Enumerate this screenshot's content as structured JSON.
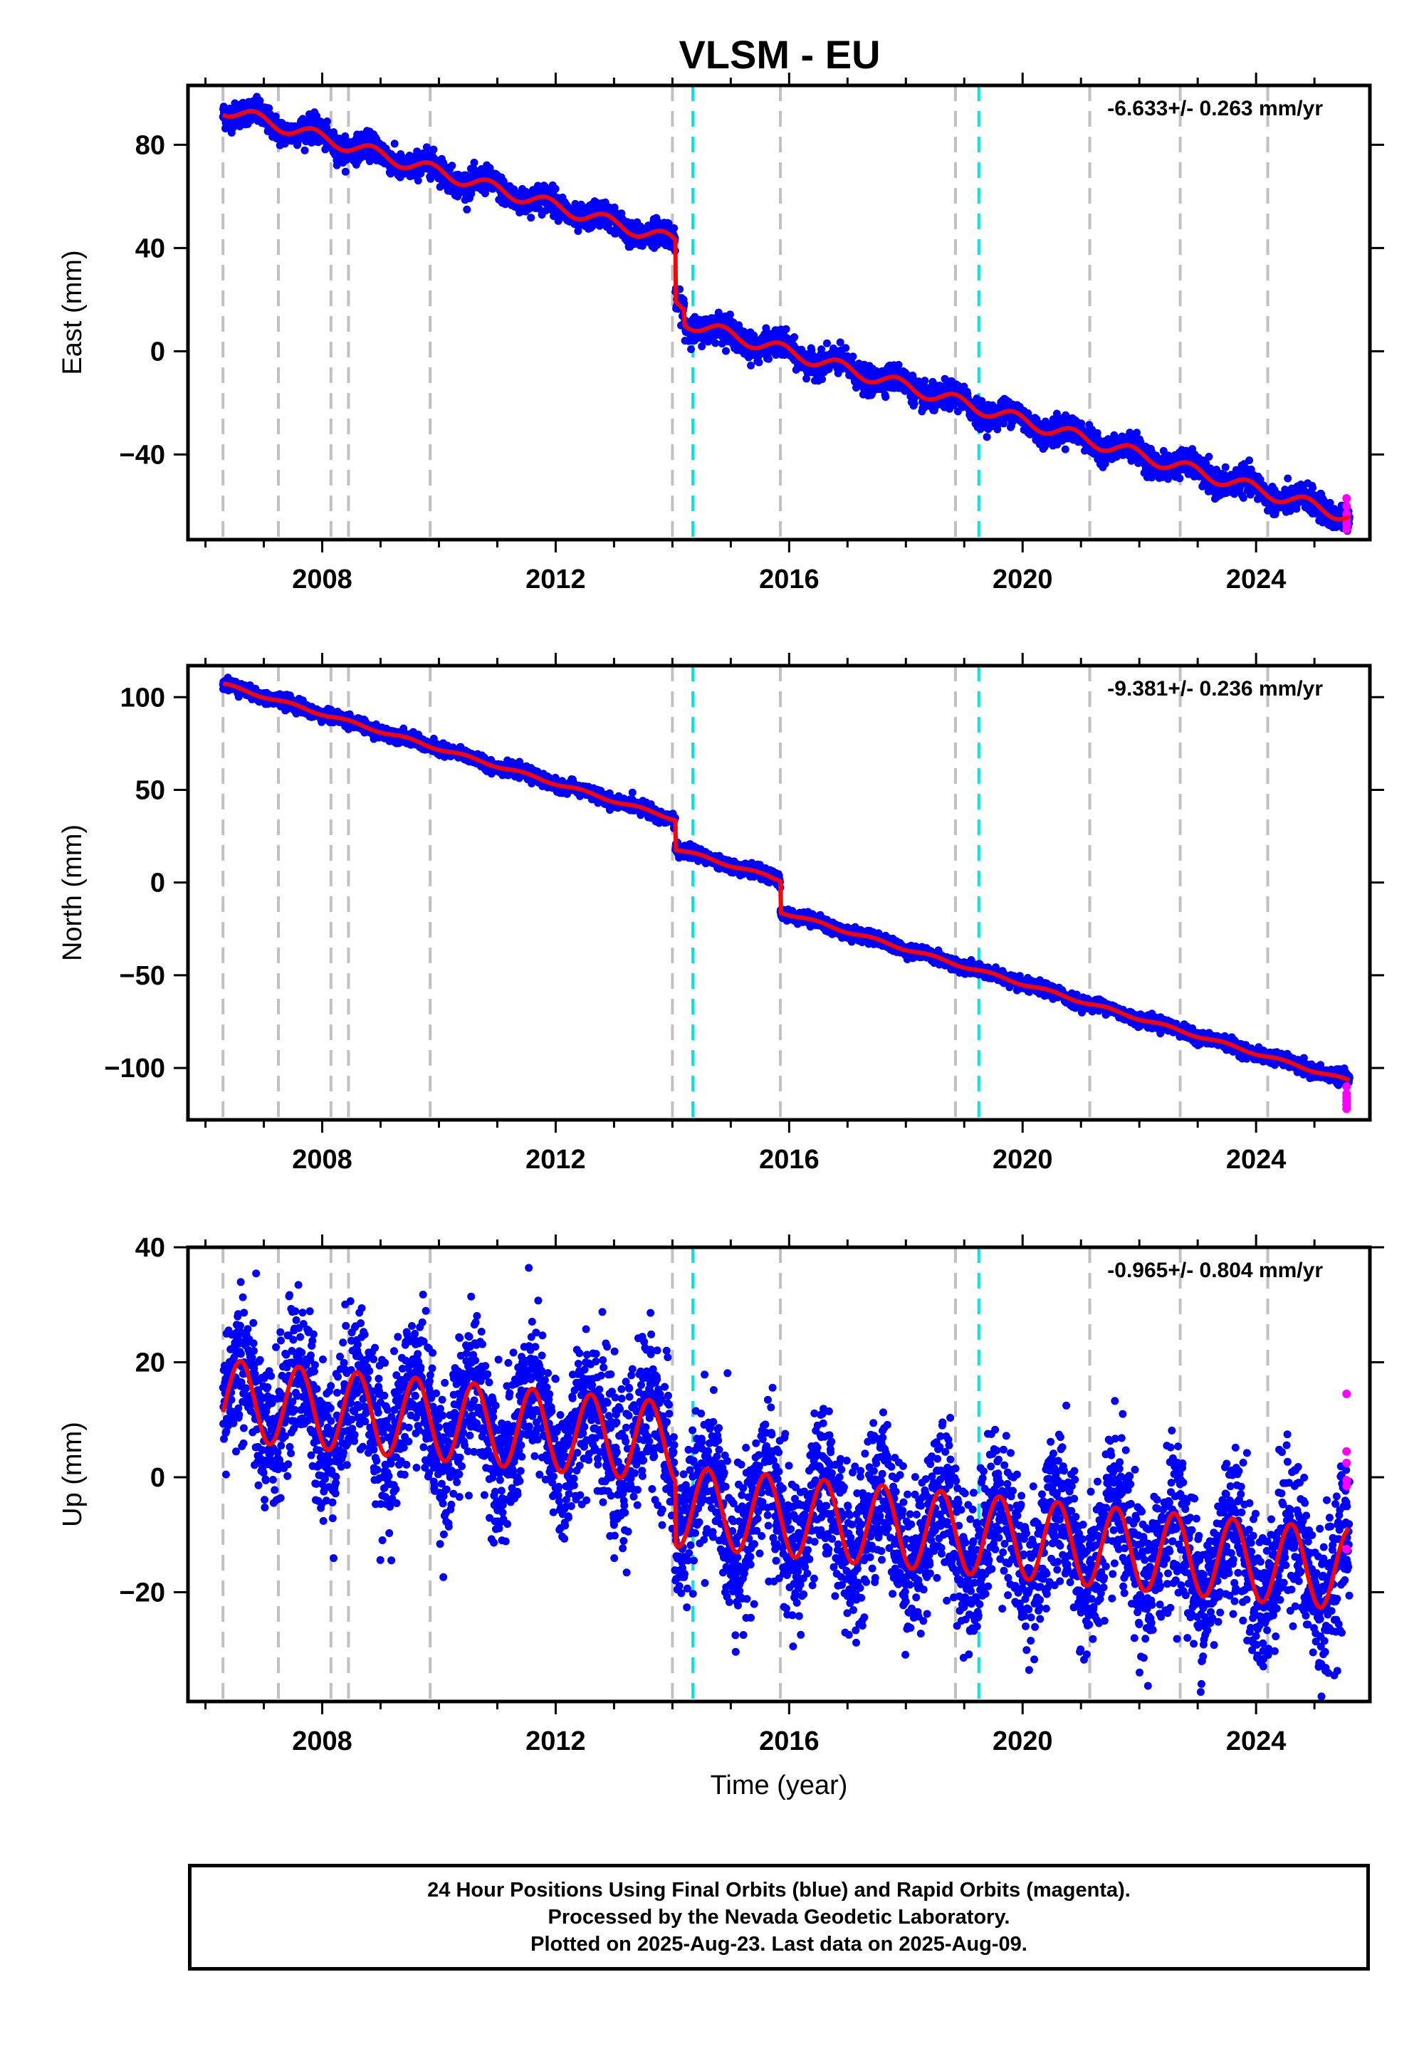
{
  "title": "VLSM - EU",
  "colors": {
    "final_points": "#0000ff",
    "rapid_points": "#ff00ff",
    "model_fit": "#ff0000",
    "event_gray": "#c0c0c0",
    "event_cyan": "#00e5e5"
  },
  "footer": {
    "line1": "24 Hour Positions Using Final Orbits (blue) and Rapid Orbits (magenta).",
    "line2": "Processed by the Nevada Geodetic Laboratory.",
    "line3": "Plotted on 2025-Aug-23. Last data on 2025-Aug-09."
  },
  "chart_data": [
    {
      "type": "scatter",
      "component": "east",
      "ylabel": "East (mm)",
      "xlabel": "",
      "rate_label": "-6.633+/- 0.263 mm/yr",
      "xlim": [
        2005.7,
        2025.95
      ],
      "ylim": [
        -73,
        103
      ],
      "xticks": [
        2008,
        2012,
        2016,
        2020,
        2024
      ],
      "yticks": [
        80,
        40,
        0,
        -40
      ],
      "ytick_labels": [
        "80",
        "40",
        "0",
        "−40"
      ],
      "series": [
        {
          "name": "Final Orbits",
          "color": "#0000ff",
          "style": "dots"
        },
        {
          "name": "Rapid Orbits",
          "color": "#ff00ff",
          "style": "dots"
        },
        {
          "name": "Model",
          "color": "#ff0000",
          "style": "line"
        }
      ],
      "model": {
        "start": 2006.3,
        "end": 2025.6,
        "offset": 94.0,
        "rate": -6.633,
        "seasonal_amplitude": 2.5,
        "phase": 0.6,
        "steps": [
          {
            "t": 2014.05,
            "dy": -24.0
          },
          {
            "t": 2014.2,
            "dy": -6.0
          }
        ]
      },
      "noise": 2.4,
      "rapid": {
        "t": 2025.55,
        "values": [
          -57,
          -60,
          -63,
          -65,
          -67,
          -69
        ]
      }
    },
    {
      "type": "scatter",
      "component": "north",
      "ylabel": "North (mm)",
      "xlabel": "",
      "rate_label": "-9.381+/- 0.236 mm/yr",
      "xlim": [
        2005.7,
        2025.95
      ],
      "ylim": [
        -128,
        117
      ],
      "xticks": [
        2008,
        2012,
        2016,
        2020,
        2024
      ],
      "yticks": [
        100,
        50,
        0,
        -50,
        -100
      ],
      "ytick_labels": [
        "100",
        "50",
        "0",
        "−50",
        "−100"
      ],
      "series": [
        {
          "name": "Final Orbits",
          "color": "#0000ff",
          "style": "dots"
        },
        {
          "name": "Rapid Orbits",
          "color": "#ff00ff",
          "style": "dots"
        },
        {
          "name": "Model",
          "color": "#ff0000",
          "style": "line"
        }
      ],
      "model": {
        "start": 2006.3,
        "end": 2025.6,
        "offset": 107.0,
        "rate": -9.381,
        "seasonal_amplitude": 0.8,
        "phase": 0.2,
        "steps": [
          {
            "t": 2014.05,
            "dy": -16.0
          },
          {
            "t": 2015.85,
            "dy": -17.0
          }
        ]
      },
      "noise": 1.6,
      "rapid": {
        "t": 2025.55,
        "values": [
          -110,
          -114,
          -116,
          -118,
          -120,
          -122
        ]
      }
    },
    {
      "type": "scatter",
      "component": "up",
      "ylabel": "Up (mm)",
      "xlabel": "Time (year)",
      "rate_label": "-0.965+/- 0.804 mm/yr",
      "xlim": [
        2005.7,
        2025.95
      ],
      "ylim": [
        -39,
        40
      ],
      "xticks": [
        2008,
        2012,
        2016,
        2020,
        2024
      ],
      "yticks": [
        40,
        20,
        0,
        -20
      ],
      "ytick_labels": [
        "40",
        "20",
        "0",
        "−20"
      ],
      "series": [
        {
          "name": "Final Orbits",
          "color": "#0000ff",
          "style": "dots"
        },
        {
          "name": "Rapid Orbits",
          "color": "#ff00ff",
          "style": "dots"
        },
        {
          "name": "Model",
          "color": "#ff0000",
          "style": "line"
        }
      ],
      "model": {
        "start": 2006.3,
        "end": 2025.6,
        "offset": 13.5,
        "rate": -0.965,
        "seasonal_amplitude": 7.0,
        "phase": 0.35,
        "steps": [
          {
            "t": 2014.05,
            "dy": -11.0
          }
        ]
      },
      "noise": 6.5,
      "rapid": {
        "t": 2025.55,
        "values": [
          14.5,
          4.5,
          2.5,
          -0.5,
          -1.5,
          -12.5
        ]
      }
    }
  ],
  "events": {
    "gray": [
      2006.3,
      2007.25,
      2008.15,
      2008.45,
      2009.85,
      2014.0,
      2015.85,
      2018.85,
      2021.15,
      2022.7,
      2024.2
    ],
    "cyan": [
      2014.35,
      2019.25
    ]
  }
}
